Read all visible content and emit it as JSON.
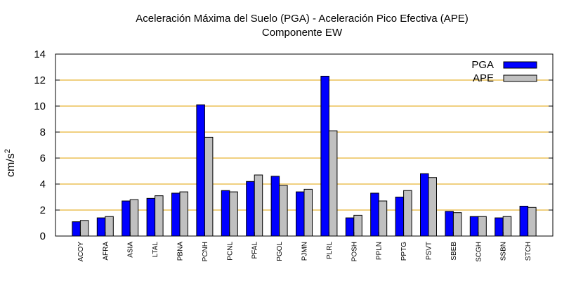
{
  "chart_data": {
    "type": "bar",
    "title": "Aceleración Máxima del Suelo (PGA) -  Aceleración Pico Efectiva (APE)",
    "subtitle": "Componente EW",
    "ylabel": "cm/s",
    "ylabel_sup": "2",
    "xlabel": "",
    "ylim": [
      0,
      14
    ],
    "yticks": [
      0,
      2,
      4,
      6,
      8,
      10,
      12,
      14
    ],
    "grid": true,
    "legend_position": "top-right",
    "categories": [
      "ACOY",
      "AFRA",
      "ASIA",
      "LTAL",
      "PBNA",
      "PCNH",
      "PCNL",
      "PFAL",
      "PGOL",
      "PJMN",
      "PLRL",
      "POSH",
      "PPLN",
      "PPTG",
      "PSVT",
      "SBEB",
      "SCGH",
      "SSBN",
      "STCH"
    ],
    "series": [
      {
        "name": "PGA",
        "color": "#0000ff",
        "values": [
          1.1,
          1.4,
          2.7,
          2.9,
          3.3,
          10.1,
          3.5,
          4.2,
          4.6,
          3.4,
          12.3,
          1.4,
          3.3,
          3.0,
          4.8,
          1.9,
          1.5,
          1.4,
          2.3
        ]
      },
      {
        "name": "APE",
        "color": "#c0c0c0",
        "values": [
          1.2,
          1.5,
          2.8,
          3.1,
          3.4,
          7.6,
          3.4,
          4.7,
          3.9,
          3.6,
          8.1,
          1.6,
          2.7,
          3.5,
          4.5,
          1.8,
          1.5,
          1.5,
          2.2
        ]
      }
    ],
    "colors": {
      "grid": "#e0a000",
      "axis": "#000000"
    }
  }
}
